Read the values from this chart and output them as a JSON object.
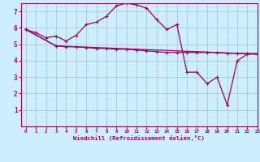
{
  "background_color": "#cceeff",
  "grid_color": "#aacccc",
  "line_color": "#990066",
  "xlim": [
    -0.5,
    23
  ],
  "ylim": [
    0,
    7.5
  ],
  "xticks": [
    0,
    1,
    2,
    3,
    4,
    5,
    6,
    7,
    8,
    9,
    10,
    11,
    12,
    13,
    14,
    15,
    16,
    17,
    18,
    19,
    20,
    21,
    22,
    23
  ],
  "yticks": [
    1,
    2,
    3,
    4,
    5,
    6,
    7
  ],
  "xlabel": "Windchill (Refroidissement éolien,°C)",
  "series1_x": [
    0,
    1,
    2,
    3,
    4,
    5,
    6,
    7,
    8,
    9,
    10,
    11,
    12,
    13,
    14,
    15,
    16,
    17,
    18,
    19,
    20,
    21,
    22,
    23
  ],
  "series1_y": [
    5.9,
    5.7,
    5.4,
    5.5,
    5.2,
    5.55,
    6.2,
    6.35,
    6.7,
    7.35,
    7.5,
    7.4,
    7.2,
    6.5,
    5.9,
    6.2,
    3.3,
    3.3,
    2.6,
    3.0,
    1.3,
    4.0,
    4.4,
    4.4
  ],
  "series2_x": [
    0,
    3,
    23
  ],
  "series2_y": [
    5.9,
    4.9,
    4.4
  ],
  "series3_x": [
    0,
    3,
    4,
    5,
    6,
    7,
    8,
    9,
    10,
    11,
    12,
    13,
    14,
    15,
    16,
    17,
    18,
    19,
    20,
    21,
    22,
    23
  ],
  "series3_y": [
    5.9,
    4.9,
    4.85,
    4.85,
    4.8,
    4.75,
    4.75,
    4.7,
    4.7,
    4.65,
    4.6,
    4.55,
    4.5,
    4.5,
    4.5,
    4.5,
    4.5,
    4.5,
    4.45,
    4.45,
    4.44,
    4.44
  ]
}
